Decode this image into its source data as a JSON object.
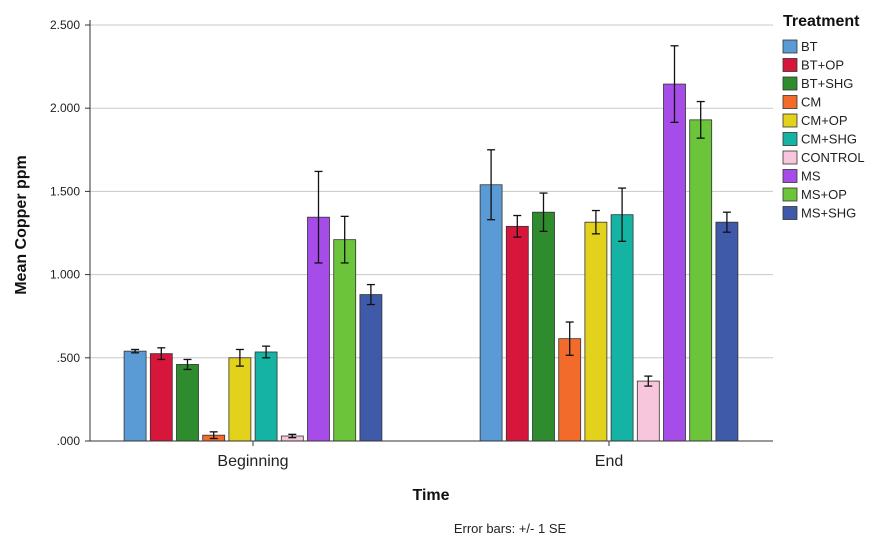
{
  "chart_data": {
    "type": "bar",
    "xlabel": "Time",
    "ylabel": "Mean Copper ppm",
    "ylim": [
      0,
      2.5
    ],
    "yticks": [
      ".000",
      ".500",
      "1.000",
      "1.500",
      "2.000",
      "2.500"
    ],
    "ytick_values": [
      0,
      0.5,
      1.0,
      1.5,
      2.0,
      2.5
    ],
    "grid": true,
    "categories": [
      "Beginning",
      "End"
    ],
    "legend": {
      "title": "Treatment",
      "placement": "right"
    },
    "note": "Error bars: +/- 1 SE",
    "series": [
      {
        "name": "BT",
        "color": "#5b9bd5",
        "values": [
          0.54,
          1.54
        ],
        "errors": [
          0.01,
          0.21
        ]
      },
      {
        "name": "BT+OP",
        "color": "#d6163b",
        "values": [
          0.525,
          1.29
        ],
        "errors": [
          0.035,
          0.065
        ]
      },
      {
        "name": "BT+SHG",
        "color": "#2e8b2e",
        "values": [
          0.46,
          1.375
        ],
        "errors": [
          0.03,
          0.115
        ]
      },
      {
        "name": "CM",
        "color": "#f26b2a",
        "values": [
          0.035,
          0.615
        ],
        "errors": [
          0.02,
          0.1
        ]
      },
      {
        "name": "CM+OP",
        "color": "#e3d21c",
        "values": [
          0.5,
          1.315
        ],
        "errors": [
          0.05,
          0.07
        ]
      },
      {
        "name": "CM+SHG",
        "color": "#14b3a3",
        "values": [
          0.535,
          1.36
        ],
        "errors": [
          0.035,
          0.16
        ]
      },
      {
        "name": "CONTROL",
        "color": "#f8c6dc",
        "values": [
          0.03,
          0.36
        ],
        "errors": [
          0.01,
          0.03
        ]
      },
      {
        "name": "MS",
        "color": "#a64ce8",
        "values": [
          1.345,
          2.145
        ],
        "errors": [
          0.275,
          0.23
        ]
      },
      {
        "name": "MS+OP",
        "color": "#6cc43a",
        "values": [
          1.21,
          1.93
        ],
        "errors": [
          0.14,
          0.11
        ]
      },
      {
        "name": "MS+SHG",
        "color": "#3f5aa8",
        "values": [
          0.88,
          1.315
        ],
        "errors": [
          0.06,
          0.06
        ]
      }
    ]
  }
}
